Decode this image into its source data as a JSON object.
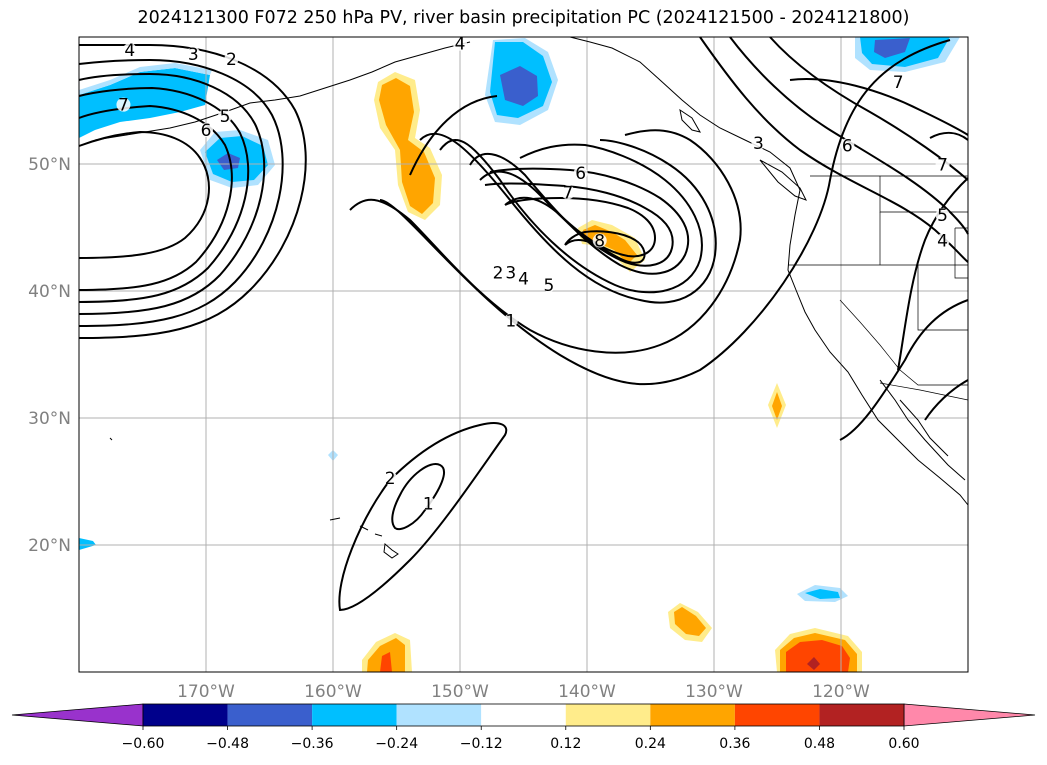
{
  "title": "2024121300 F072 250 hPa PV, river basin precipitation PC (2024121500 - 2024121800)",
  "map": {
    "lon_range": [
      -180,
      -110
    ],
    "lat_range": [
      10,
      60
    ],
    "lon_ticks": [
      {
        "value": -170,
        "label": "170°W"
      },
      {
        "value": -160,
        "label": "160°W"
      },
      {
        "value": -150,
        "label": "150°W"
      },
      {
        "value": -140,
        "label": "140°W"
      },
      {
        "value": -130,
        "label": "130°W"
      },
      {
        "value": -120,
        "label": "120°W"
      }
    ],
    "lat_ticks": [
      {
        "value": 50,
        "label": "50°N"
      },
      {
        "value": 40,
        "label": "40°N"
      },
      {
        "value": 30,
        "label": "30°N"
      },
      {
        "value": 20,
        "label": "20°N"
      }
    ],
    "grid": true
  },
  "pv_contour_labels": [
    {
      "text": "4",
      "lon": -176,
      "lat": 58.5
    },
    {
      "text": "3",
      "lon": -171,
      "lat": 58.2
    },
    {
      "text": "2",
      "lon": -168,
      "lat": 57.8
    },
    {
      "text": "7",
      "lon": -176.5,
      "lat": 54.2
    },
    {
      "text": "6",
      "lon": -170,
      "lat": 52.2
    },
    {
      "text": "5",
      "lon": -168.5,
      "lat": 53.3
    },
    {
      "text": "4",
      "lon": -150,
      "lat": 59
    },
    {
      "text": "6",
      "lon": -140.5,
      "lat": 48.8
    },
    {
      "text": "7",
      "lon": -141.5,
      "lat": 47.3
    },
    {
      "text": "8",
      "lon": -139,
      "lat": 43.5
    },
    {
      "text": "2",
      "lon": -147,
      "lat": 41
    },
    {
      "text": "3",
      "lon": -146,
      "lat": 41
    },
    {
      "text": "4",
      "lon": -145,
      "lat": 40.5
    },
    {
      "text": "5",
      "lon": -143,
      "lat": 40
    },
    {
      "text": "1",
      "lon": -146,
      "lat": 37.2
    },
    {
      "text": "3",
      "lon": -126.5,
      "lat": 51.2
    },
    {
      "text": "6",
      "lon": -119.5,
      "lat": 51
    },
    {
      "text": "7",
      "lon": -115.5,
      "lat": 56
    },
    {
      "text": "7",
      "lon": -112,
      "lat": 49.5
    },
    {
      "text": "5",
      "lon": -112,
      "lat": 45.5
    },
    {
      "text": "4",
      "lon": -112,
      "lat": 43.5
    },
    {
      "text": "2",
      "lon": -155.5,
      "lat": 24.8
    },
    {
      "text": "1",
      "lon": -152.5,
      "lat": 22.8
    }
  ],
  "colorbar": {
    "levels": [
      -0.72,
      -0.6,
      -0.48,
      -0.36,
      -0.24,
      -0.12,
      0.12,
      0.24,
      0.36,
      0.48,
      0.6,
      0.72
    ],
    "tick_labels": [
      "−0.60",
      "−0.48",
      "−0.36",
      "−0.24",
      "−0.12",
      "0.12",
      "0.24",
      "0.36",
      "0.48",
      "0.60"
    ],
    "colors": [
      "#9932cc",
      "#00008b",
      "#3a5fcd",
      "#00bfff",
      "#b0e2ff",
      "#ffffff",
      "#ffec8b",
      "#ffa500",
      "#ff4500",
      "#b22222",
      "#ff88aa",
      "#ff88aa"
    ],
    "extend": "both"
  },
  "colors": {
    "grid": "#b0b0b0",
    "tick_label": "#808080",
    "contour": "#000000"
  }
}
